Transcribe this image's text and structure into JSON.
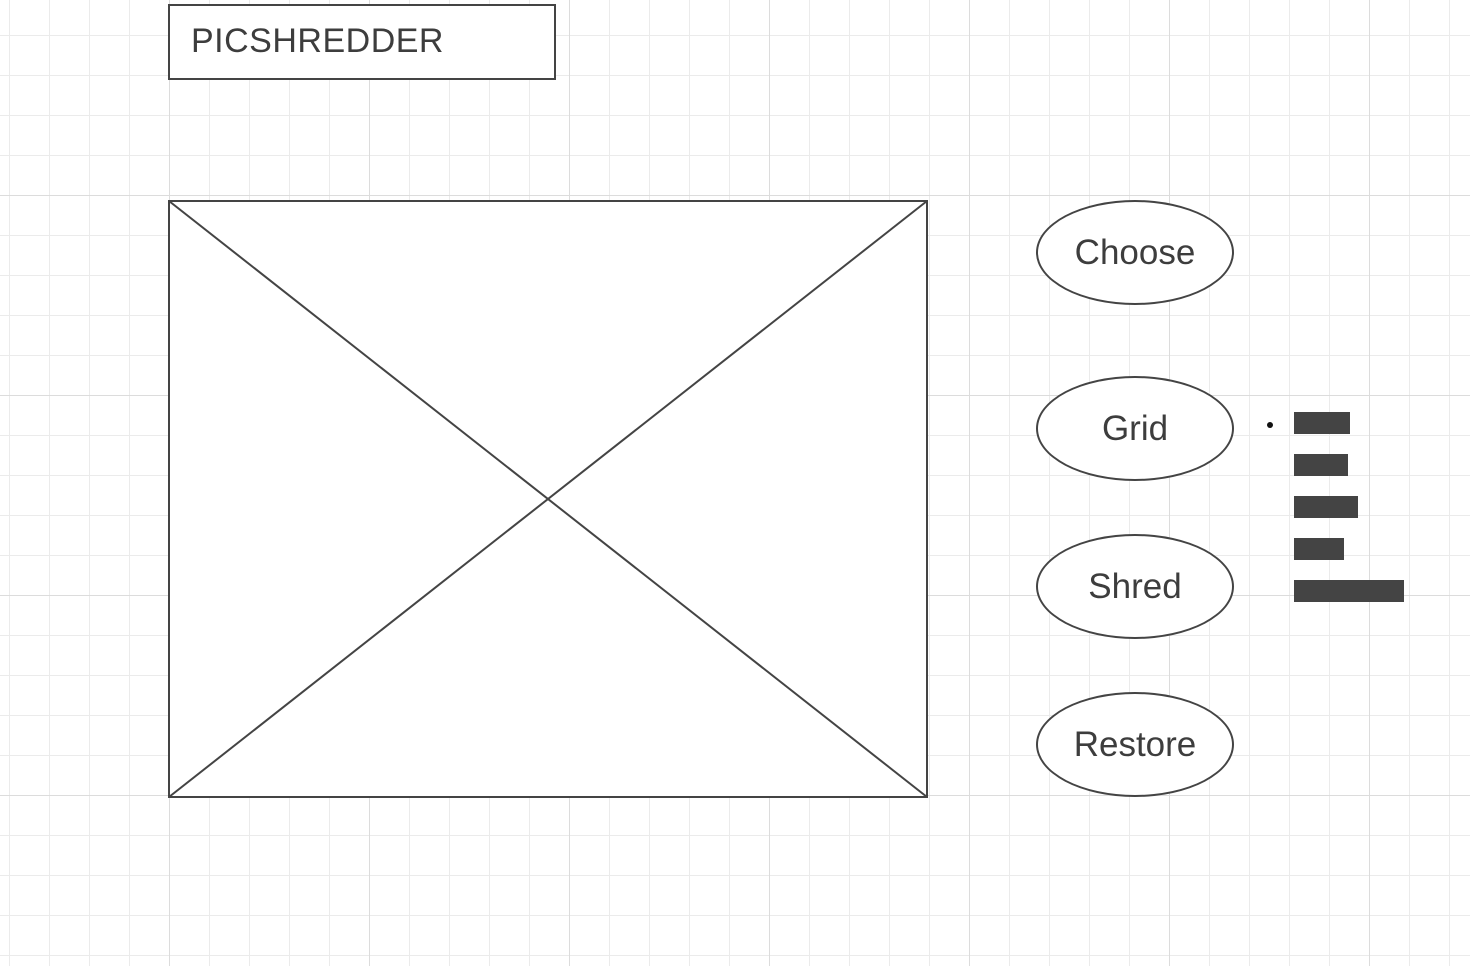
{
  "title": "PICSHREDDER",
  "image_placeholder": {
    "kind": "image-placeholder"
  },
  "buttons": {
    "choose": "Choose",
    "grid": "Grid",
    "shred": "Shred",
    "restore": "Restore"
  },
  "grid_options": {
    "count": 5,
    "selected_index": 0
  },
  "colors": {
    "stroke": "#444444",
    "text": "#3d3d3d",
    "grid_major": "#dcdcdc",
    "grid_minor": "#ebebeb",
    "background": "#ffffff"
  }
}
